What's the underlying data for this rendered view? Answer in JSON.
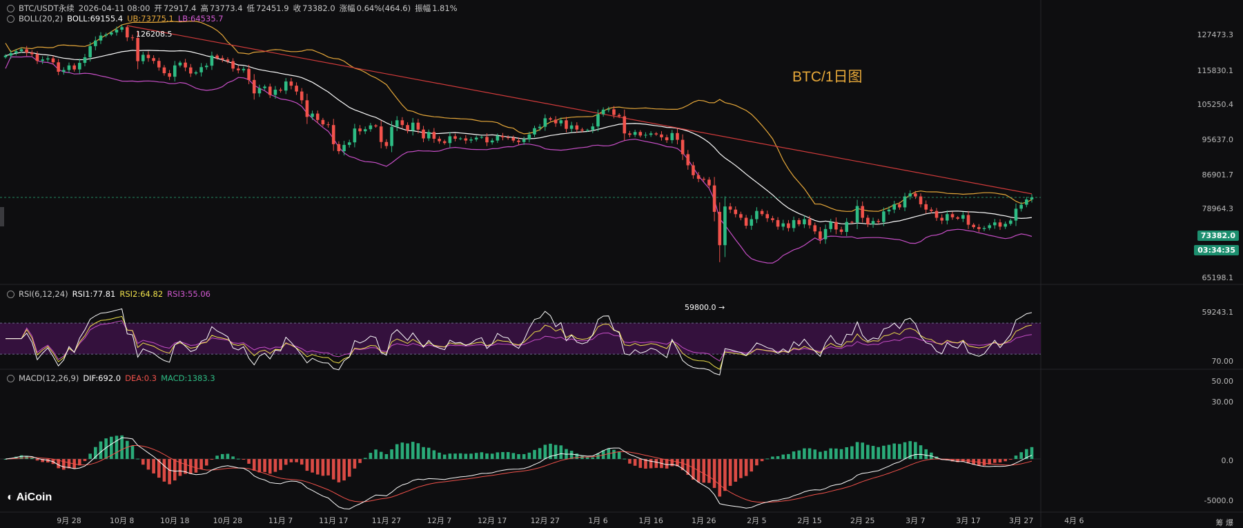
{
  "header": {
    "symbol": "BTC/USDT永续",
    "datetime": "2026-04-11 08:00",
    "open_label": "开",
    "open": "72917.4",
    "high_label": "高",
    "high": "73773.4",
    "low_label": "低",
    "low": "72451.9",
    "close_label": "收",
    "close": "73382.0",
    "change_label": "涨幅",
    "change": "0.64%(464.6)",
    "amp_label": "振幅",
    "amp": "1.81%"
  },
  "boll": {
    "name": "BOLL(20,2)",
    "mid": "BOLL:69155.4",
    "ub": "UB:73775.1",
    "lb": "LB:64535.7"
  },
  "rsi": {
    "name": "RSI(6,12,24)",
    "rsi1": "RSI1:77.81",
    "rsi2": "RSI2:64.82",
    "rsi3": "RSI3:55.06"
  },
  "macd": {
    "name": "MACD(12,26,9)",
    "dif": "DIF:692.0",
    "dea": "DEA:0.3",
    "macd": "MACD:1383.3"
  },
  "watermark": "BTC/1日图",
  "logo": "AiCoin",
  "corner_text": "筹 爆",
  "annotations": {
    "high": "126208.5",
    "low": "59800.0"
  },
  "last_price": "73382.0",
  "countdown": "03:34:35",
  "price_axis": [
    "127473.3",
    "115830.1",
    "105250.4",
    "95637.0",
    "86901.7",
    "78964.3",
    "65198.1",
    "59243.1"
  ],
  "rsi_axis": [
    "70.00",
    "50.00",
    "30.00"
  ],
  "macd_axis": [
    "0.0",
    "-5000.0"
  ],
  "x_axis": [
    "9月 28",
    "10月 8",
    "10月 18",
    "10月 28",
    "11月 7",
    "11月 17",
    "11月 27",
    "12月 7",
    "12月 17",
    "12月 27",
    "1月 6",
    "1月 16",
    "1月 26",
    "2月 5",
    "2月 15",
    "2月 25",
    "3月 7",
    "3月 17",
    "3月 27",
    "4月 6"
  ],
  "colors": {
    "up": "#2ebd85",
    "down": "#f2524b",
    "mid": "#ffffff",
    "ub": "#e8a93a",
    "lb": "#c84fc8",
    "trend": "#d23b3b",
    "rsi1": "#ffffff",
    "rsi2": "#f1e34b",
    "rsi3": "#c84fc8",
    "band": "#3b1245"
  },
  "chart_data": {
    "type": "candlestick",
    "title": "BTC/USDT永续",
    "start_date": "2025-09-16",
    "interval": "1d",
    "candles_close": [
      114800,
      115700,
      116400,
      117100,
      115900,
      115300,
      112900,
      113400,
      113800,
      112400,
      109100,
      109700,
      111300,
      109900,
      112200,
      114200,
      118300,
      120400,
      122300,
      122700,
      123500,
      124600,
      125600,
      121600,
      121400,
      112800,
      115100,
      113900,
      112900,
      110600,
      108600,
      107400,
      111300,
      112300,
      110600,
      108500,
      108900,
      110700,
      111200,
      114800,
      113900,
      113400,
      112800,
      110200,
      109600,
      110100,
      106300,
      101900,
      103600,
      104100,
      101400,
      103100,
      102800,
      105800,
      104400,
      102500,
      99700,
      94600,
      95600,
      93700,
      92400,
      92200,
      86800,
      84900,
      86600,
      87300,
      91200,
      90400,
      91000,
      92100,
      91800,
      87400,
      86300,
      91700,
      93600,
      92200,
      90600,
      92900,
      90900,
      88400,
      90200,
      88300,
      87600,
      87100,
      89000,
      88300,
      88400,
      87800,
      88100,
      88600,
      88800,
      87300,
      87800,
      89100,
      88700,
      88600,
      87800,
      87400,
      88100,
      89500,
      91300,
      91700,
      94200,
      93800,
      92700,
      93600,
      91100,
      92100,
      90900,
      90600,
      90800,
      91800,
      95400,
      96800,
      96900,
      95200,
      94800,
      89800,
      89400,
      90200,
      89200,
      89400,
      89800,
      89500,
      88700,
      87900,
      89900,
      88000,
      84100,
      81200,
      78700,
      77800,
      77600,
      76200,
      70100,
      63100,
      71300,
      70600,
      69600,
      68800,
      67100,
      68500,
      70300,
      69600,
      68700,
      68300,
      66900,
      67600,
      66600,
      68300,
      67400,
      68500,
      67200,
      65900,
      64300,
      66400,
      67900,
      66300,
      65800,
      67900,
      67800,
      71400,
      68800,
      67400,
      68100,
      67900,
      70200,
      70600,
      71800,
      71100,
      73600,
      74300,
      73600,
      71800,
      70600,
      70300,
      68800,
      68200,
      69600,
      68900,
      68600,
      69400,
      67300,
      66800,
      66400,
      66600,
      67200,
      67800,
      66900,
      67500,
      68200,
      70800,
      71700,
      72900,
      73382
    ],
    "high": 126208.5,
    "low": 59800.0,
    "indicators": {
      "boll": {
        "period": 20,
        "std": 2,
        "mid": 69155.4,
        "ub": 73775.1,
        "lb": 64535.7
      },
      "rsi": {
        "rsi1": 77.81,
        "rsi2": 64.82,
        "rsi3": 55.06
      },
      "macd": {
        "dif": 692.0,
        "dea": 0.3,
        "macd": 1383.3
      }
    },
    "ylim": [
      56000,
      131000
    ],
    "grid": false
  }
}
